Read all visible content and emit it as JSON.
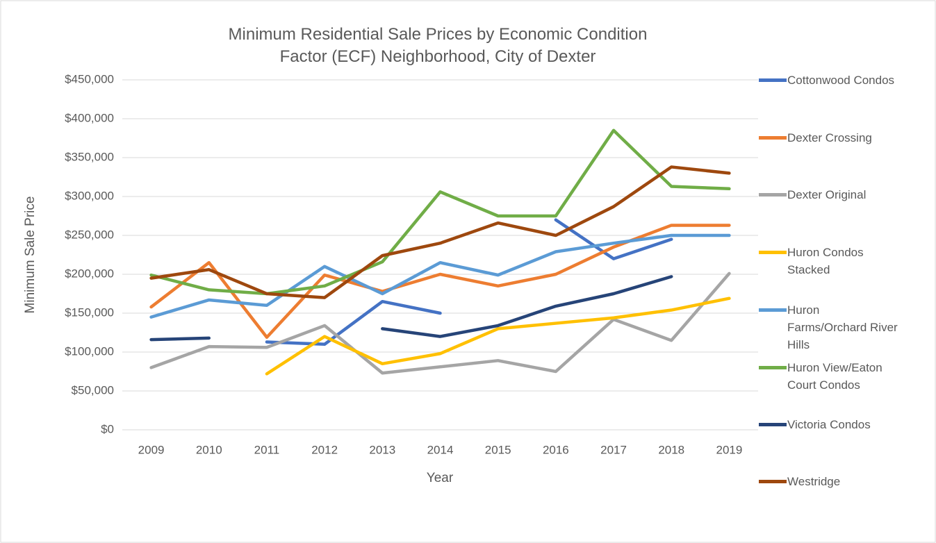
{
  "chart_data": {
    "type": "line",
    "title": "Minimum Residential Sale Prices by Economic Condition Factor (ECF) Neighborhood, City of Dexter",
    "x_label": "Year",
    "y_label": "Minimum Sale Price",
    "categories": [
      "2009",
      "2010",
      "2011",
      "2012",
      "2013",
      "2014",
      "2015",
      "2016",
      "2017",
      "2018",
      "2019"
    ],
    "ylim": [
      0,
      450000
    ],
    "yticks": [
      {
        "value": 0,
        "label": "$0"
      },
      {
        "value": 50000,
        "label": "$50,000"
      },
      {
        "value": 100000,
        "label": "$100,000"
      },
      {
        "value": 150000,
        "label": "$150,000"
      },
      {
        "value": 200000,
        "label": "$200,000"
      },
      {
        "value": 250000,
        "label": "$250,000"
      },
      {
        "value": 300000,
        "label": "$300,000"
      },
      {
        "value": 350000,
        "label": "$350,000"
      },
      {
        "value": 400000,
        "label": "$400,000"
      },
      {
        "value": 450000,
        "label": "$450,000"
      }
    ],
    "grid": true,
    "legend": "right",
    "series": [
      {
        "name": "Cottonwood Condos",
        "color": "#4472c4",
        "values": [
          null,
          null,
          113000,
          110000,
          165000,
          150000,
          null,
          270000,
          220000,
          245000,
          null
        ]
      },
      {
        "name": "Dexter Crossing",
        "color": "#ed7d31",
        "values": [
          158000,
          215000,
          119000,
          199000,
          178000,
          200000,
          185000,
          200000,
          235000,
          263000,
          263000
        ]
      },
      {
        "name": "Dexter Original",
        "color": "#a5a5a5",
        "values": [
          80000,
          107000,
          106000,
          134000,
          73000,
          81000,
          89000,
          75000,
          142000,
          115000,
          201000
        ]
      },
      {
        "name": "Huron Condos Stacked",
        "color": "#ffc000",
        "values": [
          null,
          null,
          72000,
          120000,
          85000,
          98000,
          130000,
          137000,
          144000,
          154000,
          169000
        ]
      },
      {
        "name": "Huron Farms/Orchard River Hills",
        "color": "#5b9bd5",
        "values": [
          145000,
          167000,
          160000,
          210000,
          175000,
          215000,
          199000,
          229000,
          240000,
          250000,
          250000
        ]
      },
      {
        "name": "Huron View/Eaton Court Condos",
        "color": "#70ad47",
        "values": [
          199000,
          180000,
          175000,
          185000,
          216000,
          306000,
          275000,
          275000,
          385000,
          313000,
          310000
        ]
      },
      {
        "name": "Victoria Condos",
        "color": "#264478",
        "values": [
          116000,
          118000,
          null,
          null,
          130000,
          120000,
          134000,
          159000,
          175000,
          197000,
          null
        ]
      },
      {
        "name": "Westridge",
        "color": "#9e480e",
        "values": [
          195000,
          206000,
          175000,
          170000,
          224000,
          240000,
          266000,
          250000,
          287000,
          338000,
          330000
        ]
      }
    ]
  }
}
